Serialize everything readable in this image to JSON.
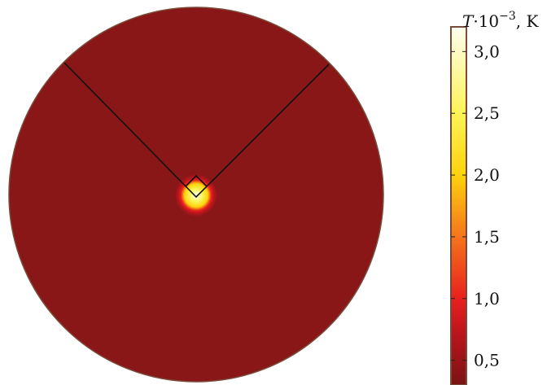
{
  "chart_data": {
    "type": "heatmap",
    "title": "",
    "quantity_label": "T·10⁻³, K",
    "label_parts": {
      "symbol": "T",
      "multiplier": "·10",
      "exponent": "−3",
      "unit": ", K"
    },
    "colorbar": {
      "range": [
        0.3,
        3.2
      ],
      "ticks": [
        0.5,
        1.0,
        1.5,
        2.0,
        2.5,
        3.0
      ],
      "tick_labels": [
        "0,5",
        "1,0",
        "1,5",
        "2,0",
        "2,5",
        "3,0"
      ],
      "colormap": [
        {
          "value": 0.3,
          "color": "#7a1414"
        },
        {
          "value": 0.7,
          "color": "#b8141c"
        },
        {
          "value": 1.0,
          "color": "#e8211e"
        },
        {
          "value": 1.5,
          "color": "#f5741b"
        },
        {
          "value": 2.0,
          "color": "#fdd30c"
        },
        {
          "value": 2.5,
          "color": "#fdf455"
        },
        {
          "value": 3.2,
          "color": "#fffdf0"
        }
      ],
      "placement": "right"
    },
    "field": {
      "background_value": 0.45,
      "background_color": "#8a1718",
      "hot_spot_peak_value": 3.2,
      "hot_spot_location": "center"
    },
    "grid": false
  },
  "colors": {
    "outline": "#7a4a3a",
    "wedge_lines": "#111111"
  }
}
